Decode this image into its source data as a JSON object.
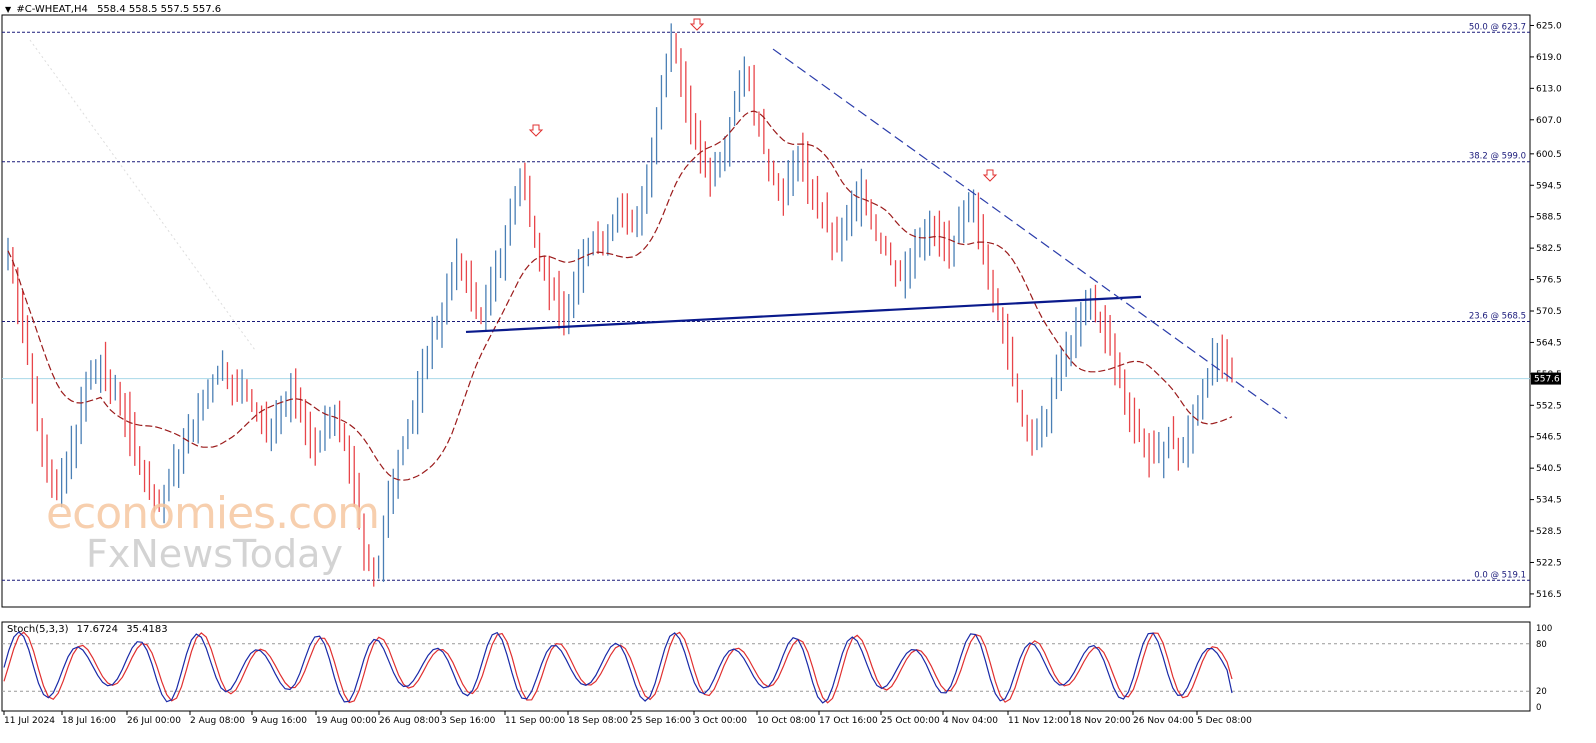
{
  "header": {
    "triangle": "▼",
    "symbol": "#C-WHEAT,H4",
    "ohlc": "558.4 558.5 557.5 557.6"
  },
  "stoch_header": {
    "name": "Stoch(5,3,3)",
    "main": "17.6724",
    "signal": "35.4183"
  },
  "watermark": {
    "line1": "economies.com",
    "line2": "FxNewsToday"
  },
  "current_price": "557.6",
  "colors": {
    "bull_candle": "#4a7fb5",
    "bear_candle": "#e8454a",
    "ma_line": "#9b1b1b",
    "fib_lines": "#1a1a7a",
    "neckline": "#0a1a8c",
    "trendline": "#2a3caa",
    "stoch_main": "#1a2aa8",
    "stoch_signal": "#e03030",
    "arrow": "#e03030",
    "price_line": "#a8d8e8"
  },
  "chart_data": {
    "type": "candlestick",
    "symbol": "#C-WHEAT",
    "timeframe": "H4",
    "ylim": [
      514,
      627
    ],
    "y_ticks": [
      "625.0",
      "619.0",
      "613.0",
      "607.0",
      "600.5",
      "594.5",
      "588.5",
      "582.5",
      "576.5",
      "570.5",
      "564.5",
      "558.5",
      "552.5",
      "546.5",
      "540.5",
      "534.5",
      "528.5",
      "522.5",
      "516.5"
    ],
    "x_ticks": [
      "11 Jul 2024",
      "18 Jul 16:00",
      "26 Jul 00:00",
      "2 Aug 08:00",
      "9 Aug 16:00",
      "19 Aug 00:00",
      "26 Aug 08:00",
      "3 Sep 16:00",
      "11 Sep 00:00",
      "18 Sep 08:00",
      "25 Sep 16:00",
      "3 Oct 00:00",
      "10 Oct 08:00",
      "17 Oct 16:00",
      "25 Oct 00:00",
      "4 Nov 04:00",
      "11 Nov 12:00",
      "18 Nov 20:00",
      "26 Nov 04:00",
      "5 Dec 08:00"
    ],
    "fib_levels": [
      {
        "label": "50.0 @ 623.7",
        "value": 623.7
      },
      {
        "label": "38.2 @ 599.0",
        "value": 599.0
      },
      {
        "label": "23.6 @ 568.5",
        "value": 568.5
      },
      {
        "label": "0.0 @ 519.1",
        "value": 519.1
      }
    ],
    "last_price": 557.6,
    "closes": [
      582,
      578,
      572,
      566,
      561,
      556,
      550,
      545,
      540,
      537,
      536,
      538,
      541,
      545,
      548,
      552,
      556,
      558,
      559,
      560,
      557,
      555,
      556,
      554,
      550,
      547,
      544,
      541,
      538,
      536,
      534,
      533,
      535,
      538,
      541,
      543,
      545,
      547,
      549,
      551,
      553,
      555,
      557,
      559,
      560,
      558,
      556,
      555,
      556,
      554,
      552,
      550,
      549,
      548,
      549,
      551,
      552,
      553,
      555,
      553,
      550,
      548,
      546,
      545,
      547,
      548,
      549,
      550,
      548,
      545,
      541,
      536,
      530,
      525,
      522,
      520,
      522,
      528,
      534,
      539,
      543,
      546,
      548,
      551,
      555,
      559,
      563,
      566,
      568,
      571,
      574,
      577,
      580,
      579,
      576,
      573,
      571,
      570,
      572,
      575,
      578,
      581,
      585,
      589,
      592,
      596,
      593,
      589,
      585,
      581,
      578,
      575,
      573,
      571,
      570,
      572,
      575,
      578,
      581,
      583,
      585,
      584,
      583,
      586,
      588,
      590,
      589,
      587,
      587,
      589,
      592,
      596,
      600,
      606,
      612,
      618,
      622,
      620,
      615,
      610,
      606,
      603,
      600,
      598,
      596,
      598,
      600,
      603,
      607,
      611,
      615,
      617,
      613,
      609,
      605,
      601,
      598,
      596,
      594,
      592,
      595,
      598,
      601,
      598,
      595,
      593,
      590,
      588,
      586,
      584,
      583,
      585,
      588,
      590,
      592,
      594,
      591,
      588,
      585,
      583,
      582,
      580,
      578,
      577,
      578,
      580,
      582,
      584,
      585,
      586,
      586,
      585,
      584,
      583,
      584,
      586,
      588,
      589,
      590,
      586,
      582,
      578,
      574,
      570,
      566,
      562,
      558,
      554,
      550,
      547,
      545,
      546,
      548,
      551,
      555,
      558,
      561,
      563,
      565,
      567,
      569,
      571,
      572,
      570,
      568,
      566,
      563,
      560,
      557,
      554,
      551,
      549,
      547,
      545,
      543,
      542,
      543,
      545,
      546,
      545,
      543,
      544,
      547,
      550,
      553,
      556,
      559,
      561,
      562,
      560,
      558,
      557.6
    ],
    "ma_period": 20,
    "trendlines": [
      {
        "name": "neckline",
        "from": {
          "x": "5 Sep",
          "y": 566.5
        },
        "to": {
          "x": "21 Nov",
          "y": 573.2
        }
      },
      {
        "name": "descending-resistance",
        "from": {
          "x": "10 Oct",
          "y": 620.5
        },
        "to": {
          "x": "12 Dec",
          "y": 550.0
        }
      }
    ],
    "peak_arrows": [
      "13 Sep",
      "3 Oct",
      "5 Nov"
    ],
    "stochastic": {
      "params": "5,3,3",
      "main": 17.6724,
      "signal": 35.4183,
      "ylim": [
        0,
        100
      ],
      "levels": [
        20,
        80
      ],
      "ticks": [
        "100",
        "80",
        "20",
        "0"
      ]
    }
  }
}
